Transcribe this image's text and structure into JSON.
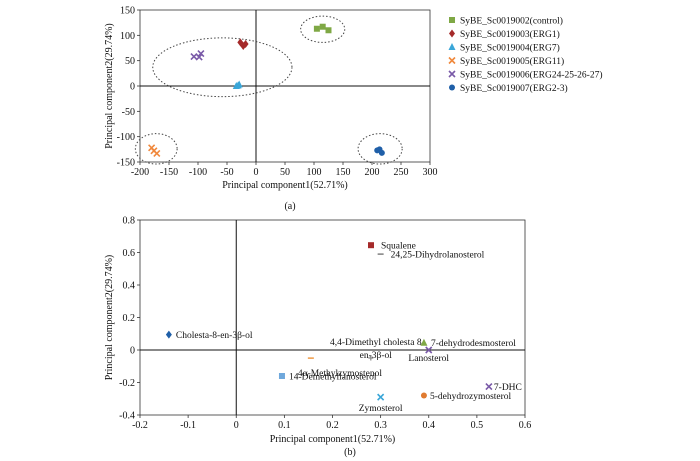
{
  "chart_data": [
    {
      "type": "scatter",
      "caption": "(a)",
      "xlabel": "Principal component1(52.71%)",
      "ylabel": "Principal component2(29.74%)",
      "xlim": [
        -200,
        300
      ],
      "ylim": [
        -150,
        150
      ],
      "xticks": [
        -200,
        -150,
        -100,
        -50,
        0,
        50,
        100,
        150,
        200,
        250,
        300
      ],
      "yticks": [
        -150,
        -100,
        -50,
        0,
        50,
        100,
        150
      ],
      "series": [
        {
          "name": "SyBE_Sc0019002(control)",
          "marker": "square",
          "color": "#7fa845",
          "points": [
            [
              105,
              113
            ],
            [
              115,
              117
            ],
            [
              125,
              110
            ]
          ]
        },
        {
          "name": "SyBE_Sc0019003(ERG1)",
          "marker": "diamond",
          "color": "#a52a2a",
          "points": [
            [
              -27,
              86
            ],
            [
              -22,
              79
            ],
            [
              -18,
              83
            ]
          ]
        },
        {
          "name": "SyBE_Sc0019004(ERG7)",
          "marker": "triangle",
          "color": "#3aa6d8",
          "points": [
            [
              -34,
              0
            ],
            [
              -31,
              1
            ],
            [
              -29,
              3
            ]
          ]
        },
        {
          "name": "SyBE_Sc0019005(ERG11)",
          "marker": "x",
          "color": "#f0883c",
          "points": [
            [
              -180,
              -122
            ],
            [
              -176,
              -128
            ],
            [
              -171,
              -133
            ]
          ]
        },
        {
          "name": "SyBE_Sc0019006(ERG24-25-26-27)",
          "marker": "x",
          "color": "#7a5aa8",
          "points": [
            [
              -107,
              58
            ],
            [
              -98,
              57
            ],
            [
              -95,
              64
            ]
          ]
        },
        {
          "name": "SyBE_Sc0019007(ERG2-3)",
          "marker": "circle",
          "color": "#1f5fa8",
          "points": [
            [
              209,
              -127
            ],
            [
              213,
              -125
            ],
            [
              217,
              -132
            ]
          ]
        }
      ],
      "groups": [
        "control",
        "ERG1/ERG7/ERG24-25-26-27",
        "ERG11",
        "ERG2-3"
      ]
    },
    {
      "type": "scatter",
      "caption": "(b)",
      "xlabel": "Principal component1(52.71%)",
      "ylabel": "Principal component2(29.74%)",
      "xlim": [
        -0.2,
        0.6
      ],
      "ylim": [
        -0.4,
        0.8
      ],
      "xticks": [
        -0.2,
        -0.1,
        0,
        0.1,
        0.2,
        0.3,
        0.4,
        0.5,
        0.6
      ],
      "yticks": [
        -0.4,
        -0.2,
        0,
        0.2,
        0.4,
        0.6,
        0.8
      ],
      "points": [
        {
          "label": "Squalene",
          "x": 0.28,
          "y": 0.645,
          "marker": "square",
          "color": "#a52a2a"
        },
        {
          "label": "24,25-Dihydrolanosterol",
          "x": 0.3,
          "y": 0.59,
          "marker": "dash",
          "color": "#888888"
        },
        {
          "label": "Cholesta-8-en-3β-ol",
          "x": -0.14,
          "y": 0.095,
          "marker": "diamond",
          "color": "#1f5fa8"
        },
        {
          "label": "4,4-Dimethyl cholesta 8",
          "x": 0.29,
          "y": 0.0,
          "marker": "plus",
          "color": "#888888"
        },
        {
          "label": "en-3β-ol",
          "x": 0.29,
          "y": 0.0,
          "marker": "none",
          "color": "#888888"
        },
        {
          "label": "Lanosterol",
          "x": 0.4,
          "y": 0.0,
          "marker": "x",
          "color": "#7a5aa8"
        },
        {
          "label": "7-dehydrodesmosterol",
          "x": 0.39,
          "y": 0.045,
          "marker": "triangle",
          "color": "#7fa845"
        },
        {
          "label": "4α-Methylzymostenol",
          "x": 0.155,
          "y": -0.05,
          "marker": "dash",
          "color": "#f0a050"
        },
        {
          "label": "14-Demethyllanosterol",
          "x": 0.095,
          "y": -0.16,
          "marker": "square",
          "color": "#6fa8dc"
        },
        {
          "label": "Zymosterol",
          "x": 0.3,
          "y": -0.29,
          "marker": "x",
          "color": "#3aa6d8"
        },
        {
          "label": "5-dehydrozymosterol",
          "x": 0.39,
          "y": -0.28,
          "marker": "circle",
          "color": "#e07b30"
        },
        {
          "label": "7-DHC",
          "x": 0.525,
          "y": -0.225,
          "marker": "x",
          "color": "#7a5aa8"
        }
      ]
    }
  ]
}
